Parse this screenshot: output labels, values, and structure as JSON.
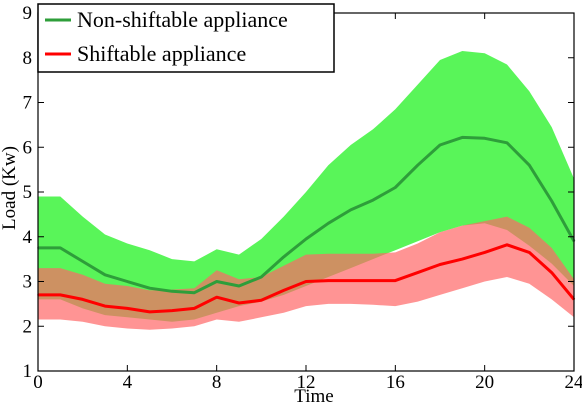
{
  "chart_data": {
    "type": "line",
    "xlabel": "Time",
    "ylabel": "Load (Kw)",
    "xlim": [
      0,
      24
    ],
    "ylim": [
      1,
      9
    ],
    "xticks": [
      0,
      4,
      8,
      12,
      16,
      20,
      24
    ],
    "yticks": [
      1,
      2,
      3,
      4,
      5,
      6,
      7,
      8,
      9
    ],
    "grid": false,
    "legend_position": "top-left",
    "x": [
      0,
      1,
      2,
      3,
      4,
      5,
      6,
      7,
      8,
      9,
      10,
      11,
      12,
      13,
      14,
      15,
      16,
      17,
      18,
      19,
      20,
      21,
      22,
      23,
      24
    ],
    "series": [
      {
        "name": "Non-shiftable appliance",
        "color": "#2e9e3a",
        "band_color": "#3cf33c",
        "values": [
          3.75,
          3.75,
          3.45,
          3.15,
          3.0,
          2.85,
          2.78,
          2.75,
          3.0,
          2.9,
          3.1,
          3.55,
          3.95,
          4.3,
          4.6,
          4.82,
          5.1,
          5.6,
          6.05,
          6.22,
          6.2,
          6.1,
          5.6,
          4.8,
          3.9
        ],
        "lower": [
          2.6,
          2.6,
          2.4,
          2.25,
          2.2,
          2.15,
          2.1,
          2.15,
          2.3,
          2.45,
          2.55,
          2.7,
          2.9,
          3.1,
          3.3,
          3.5,
          3.7,
          3.9,
          4.1,
          4.25,
          4.3,
          4.15,
          3.8,
          3.4,
          2.9
        ],
        "upper": [
          4.9,
          4.9,
          4.45,
          4.05,
          3.85,
          3.7,
          3.5,
          3.45,
          3.72,
          3.6,
          3.95,
          4.45,
          5.0,
          5.6,
          6.05,
          6.4,
          6.85,
          7.4,
          7.95,
          8.15,
          8.1,
          7.85,
          7.25,
          6.45,
          5.3
        ]
      },
      {
        "name": "Shiftable appliance",
        "color": "#ff0000",
        "band_color": "#ff6666",
        "values": [
          2.7,
          2.7,
          2.6,
          2.45,
          2.4,
          2.32,
          2.35,
          2.4,
          2.65,
          2.52,
          2.58,
          2.8,
          3.0,
          3.02,
          3.02,
          3.02,
          3.02,
          3.2,
          3.38,
          3.5,
          3.65,
          3.82,
          3.65,
          3.2,
          2.6
        ],
        "lower": [
          2.15,
          2.15,
          2.1,
          2.0,
          1.95,
          1.92,
          1.95,
          2.0,
          2.15,
          2.1,
          2.2,
          2.3,
          2.45,
          2.5,
          2.5,
          2.48,
          2.45,
          2.55,
          2.7,
          2.85,
          3.0,
          3.1,
          2.95,
          2.6,
          2.2
        ],
        "upper": [
          3.3,
          3.3,
          3.15,
          2.95,
          2.9,
          2.8,
          2.82,
          2.85,
          3.25,
          3.05,
          3.1,
          3.35,
          3.6,
          3.62,
          3.62,
          3.62,
          3.65,
          3.85,
          4.1,
          4.25,
          4.35,
          4.45,
          4.2,
          3.75,
          3.05
        ]
      }
    ]
  }
}
